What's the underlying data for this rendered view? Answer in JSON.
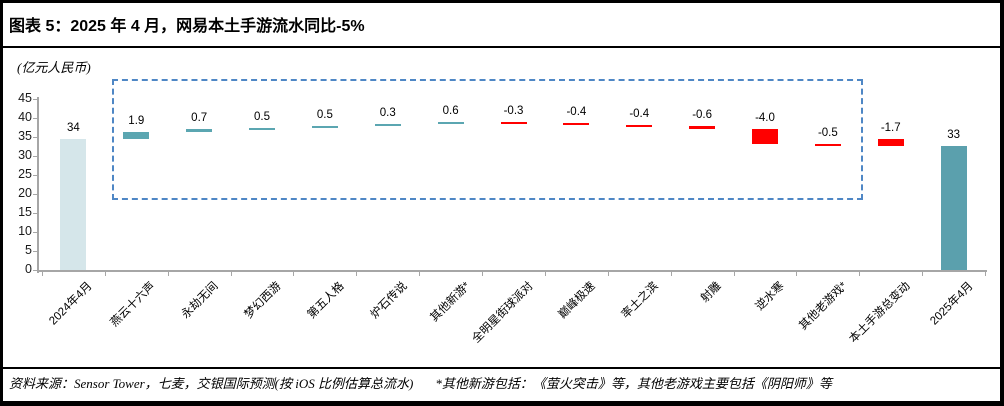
{
  "header": {
    "title": "图表 5：2025 年 4 月，网易本土手游流水同比-5%"
  },
  "footer": {
    "source": "资料来源：Sensor Tower，七麦，交银国际预测(按 iOS 比例估算总流水)",
    "note": "*其他新游包括：《萤火突击》等，其他老游戏主要包括《阴阳师》等"
  },
  "chart_data": {
    "type": "bar",
    "subtype": "waterfall",
    "title": "2025 年 4 月，网易本土手游流水同比-5%",
    "unit_label": "(亿元人民币)",
    "ylabel": "",
    "xlabel": "",
    "ylim": [
      0,
      45
    ],
    "yticks": [
      0,
      5,
      10,
      15,
      20,
      25,
      30,
      35,
      40,
      45
    ],
    "grid": false,
    "legend": "none",
    "start": {
      "label": "2024年4月",
      "display": "34",
      "value": 34.4
    },
    "deltas": [
      {
        "label": "燕云十六声",
        "display": "1.9",
        "value": 1.9
      },
      {
        "label": "永劫无间",
        "display": "0.7",
        "value": 0.7
      },
      {
        "label": "梦幻西游",
        "display": "0.5",
        "value": 0.5
      },
      {
        "label": "第五人格",
        "display": "0.5",
        "value": 0.5
      },
      {
        "label": "炉石传说",
        "display": "0.3",
        "value": 0.3
      },
      {
        "label": "其他新游*",
        "display": "0.6",
        "value": 0.6
      },
      {
        "label": "全明星街球派对",
        "display": "-0.3",
        "value": -0.3
      },
      {
        "label": "巅峰极速",
        "display": "-0.4",
        "value": -0.4
      },
      {
        "label": "率土之滨",
        "display": "-0.4",
        "value": -0.4
      },
      {
        "label": "射雕",
        "display": "-0.6",
        "value": -0.6
      },
      {
        "label": "逆水寒",
        "display": "-4.0",
        "value": -4.0
      },
      {
        "label": "其他老游戏*",
        "display": "-0.5",
        "value": -0.5
      }
    ],
    "total_change": {
      "label": "本土手游总变动",
      "display": "-1.7",
      "value": -1.7
    },
    "end": {
      "label": "2025年4月",
      "display": "33",
      "value": 32.7
    },
    "annotation_box": "deltas-highlight",
    "colors": {
      "start_bar": "#d5e6ea",
      "positive": "#5ba6b1",
      "negative": "#ff0000",
      "end_bar": "#5ba0ad",
      "box_border": "#4f87c5",
      "axis": "#a6a6a6"
    }
  }
}
